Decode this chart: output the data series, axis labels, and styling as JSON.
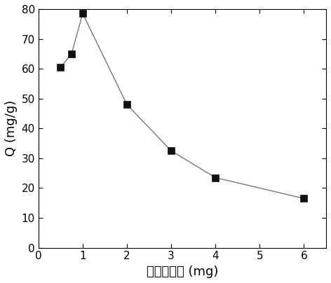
{
  "x": [
    0.5,
    0.75,
    1.0,
    2.0,
    3.0,
    4.0,
    6.0
  ],
  "y": [
    60.5,
    65.0,
    78.5,
    48.0,
    32.5,
    23.5,
    16.5
  ],
  "xlabel": "吸附剂用量 (mg)",
  "ylabel": "Q (mg/g)",
  "xlim": [
    0,
    6.5
  ],
  "ylim": [
    0,
    80
  ],
  "xticks": [
    0,
    1,
    2,
    3,
    4,
    5,
    6
  ],
  "yticks": [
    0,
    10,
    20,
    30,
    40,
    50,
    60,
    70,
    80
  ],
  "line_color": "#777777",
  "marker_color": "#111111",
  "marker_size": 7,
  "linewidth": 1.0,
  "background_color": "#ffffff",
  "tick_fontsize": 11,
  "label_fontsize": 13
}
